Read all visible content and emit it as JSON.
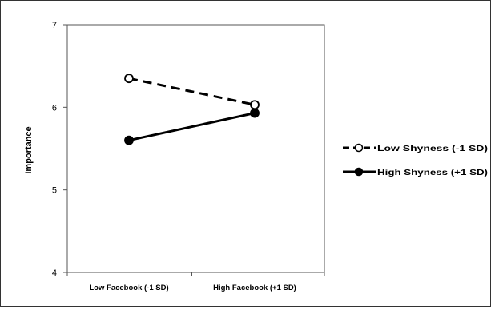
{
  "chart_data": {
    "type": "line",
    "title": "",
    "xlabel": "",
    "ylabel": "Importance",
    "categories": [
      "Low Facebook (-1 SD)",
      "High Facebook (+1 SD)"
    ],
    "ylim": [
      4,
      7
    ],
    "yticks": [
      "4",
      "5",
      "6",
      "7"
    ],
    "grid": false,
    "legend_position": "right",
    "series": [
      {
        "name": "Low Shyness (-1 SD)",
        "values": [
          6.35,
          6.03
        ],
        "line_style": "dashed",
        "marker": "open-circle",
        "color": "#000000"
      },
      {
        "name": "High Shyness (+1 SD)",
        "values": [
          5.6,
          5.93
        ],
        "line_style": "solid",
        "marker": "filled-circle",
        "color": "#000000"
      }
    ]
  }
}
